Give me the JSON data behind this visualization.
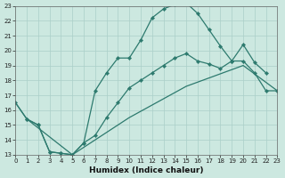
{
  "xlabel": "Humidex (Indice chaleur)",
  "bg_color": "#cce8e0",
  "line_color": "#2d7a6e",
  "grid_color": "#aacfc8",
  "xlim": [
    0,
    23
  ],
  "ylim": [
    13,
    23
  ],
  "xticks": [
    0,
    1,
    2,
    3,
    4,
    5,
    6,
    7,
    8,
    9,
    10,
    11,
    12,
    13,
    14,
    15,
    16,
    17,
    18,
    19,
    20,
    21,
    22,
    23
  ],
  "yticks": [
    13,
    14,
    15,
    16,
    17,
    18,
    19,
    20,
    21,
    22,
    23
  ],
  "curve1": {
    "x": [
      0,
      1,
      2,
      3,
      4,
      5,
      6,
      7,
      8,
      9,
      10,
      11,
      12,
      13,
      14,
      15,
      16,
      17,
      18,
      19,
      20,
      21,
      22
    ],
    "y": [
      16.5,
      15.4,
      15.0,
      13.2,
      13.1,
      13.0,
      13.8,
      17.3,
      18.5,
      19.5,
      19.5,
      20.7,
      22.2,
      22.8,
      23.1,
      23.2,
      22.5,
      21.4,
      20.3,
      19.3,
      20.4,
      19.2,
      18.5
    ]
  },
  "curve2": {
    "x": [
      1,
      2,
      3,
      4,
      5,
      6,
      7,
      8,
      9,
      10,
      11,
      12,
      13,
      14,
      15,
      16,
      17,
      18,
      19,
      20,
      21,
      22,
      23
    ],
    "y": [
      15.4,
      15.0,
      13.2,
      13.1,
      13.0,
      13.8,
      14.3,
      15.5,
      16.5,
      17.5,
      18.0,
      18.5,
      19.0,
      19.5,
      19.8,
      19.3,
      19.1,
      18.8,
      19.3,
      19.3,
      18.5,
      17.3,
      17.3
    ]
  },
  "curve3": {
    "x": [
      0,
      1,
      5,
      10,
      15,
      20,
      23
    ],
    "y": [
      16.5,
      15.4,
      13.0,
      15.5,
      17.6,
      19.0,
      17.3
    ]
  }
}
